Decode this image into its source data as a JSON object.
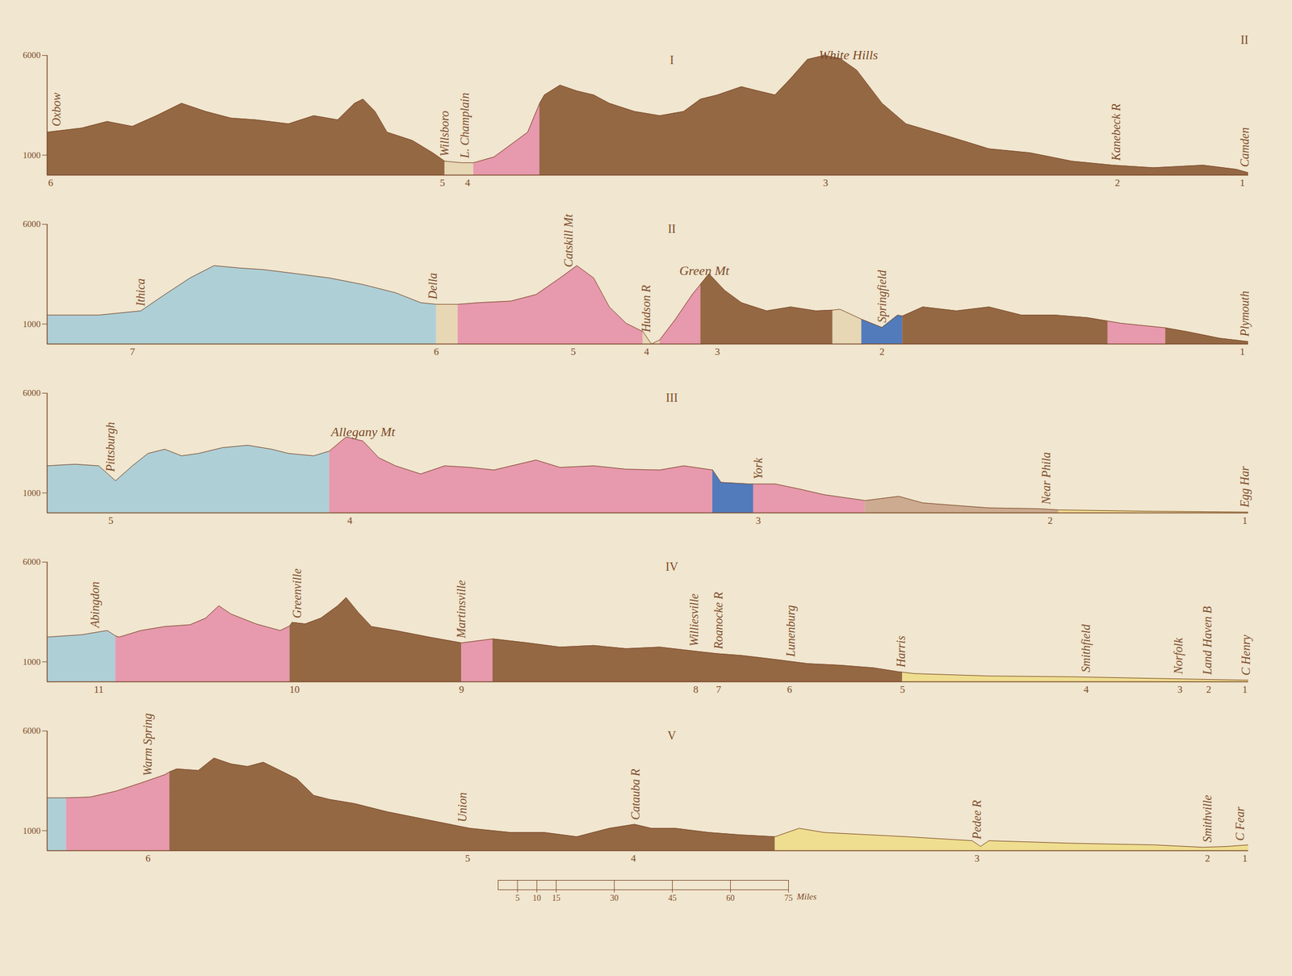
{
  "chart_data": [
    {
      "type": "area",
      "title": "I",
      "plate_number": "II",
      "xlim": [
        0,
        100
      ],
      "ylim": [
        0,
        6000
      ],
      "yticks": [
        1000,
        6000
      ],
      "tick_labels": "y",
      "series": [
        {
          "color": "#8b5a34",
          "x": [
            0,
            2.9,
            5.0,
            7.1,
            9.1,
            11.2,
            13.2,
            15.3,
            17.4,
            20.1,
            22.2,
            24.2,
            25.6,
            26.3,
            27.3,
            28.3,
            30.4,
            32.1,
            33.1
          ],
          "values": [
            2150,
            2360,
            2690,
            2440,
            2980,
            3600,
            3190,
            2860,
            2770,
            2570,
            2980,
            2770,
            3600,
            3810,
            3190,
            2150,
            1740,
            1120,
            700
          ]
        },
        {
          "color": "#e6d5b0",
          "x": [
            33.1,
            34.5,
            35.5
          ],
          "values": [
            700,
            620,
            620
          ]
        },
        {
          "color": "#e590a8",
          "x": [
            35.5,
            37.2,
            40.0,
            41.0
          ],
          "values": [
            620,
            910,
            2150,
            3600
          ]
        },
        {
          "color": "#8b5a34",
          "x": [
            41.0,
            41.4,
            42.7,
            44.1,
            45.5,
            46.8,
            48.9,
            51.0,
            53.0,
            54.4,
            55.8,
            57.8,
            59.2,
            60.6,
            61.9,
            63.3,
            64.7,
            66.0,
            67.4,
            69.5,
            71.5,
            75.0,
            78.4,
            81.8,
            85.3,
            88.7,
            92.1,
            96.2,
            99.0,
            100
          ],
          "values": [
            3600,
            4020,
            4510,
            4220,
            4020,
            3600,
            3190,
            2980,
            3190,
            3810,
            4020,
            4430,
            4220,
            4020,
            4840,
            5800,
            6000,
            5850,
            5260,
            3600,
            2570,
            1950,
            1320,
            1120,
            700,
            500,
            370,
            500,
            290,
            120
          ]
        }
      ],
      "places": [
        {
          "x": 0.8,
          "label": "Oxbow"
        },
        {
          "x": 33.1,
          "label": "Willsboro"
        },
        {
          "x": 34.8,
          "label": "L. Champlain"
        },
        {
          "x": 89.0,
          "label": "Kanebeck R"
        },
        {
          "x": 99.7,
          "label": "Camden"
        }
      ],
      "annotations": [
        {
          "x": 66.7,
          "label": "White Hills"
        }
      ],
      "stations": [
        {
          "x": 0.3,
          "label": "6"
        },
        {
          "x": 32.9,
          "label": "5"
        },
        {
          "x": 35.0,
          "label": "4"
        },
        {
          "x": 64.8,
          "label": "3"
        },
        {
          "x": 89.1,
          "label": "2"
        },
        {
          "x": 99.5,
          "label": "1"
        }
      ]
    },
    {
      "type": "area",
      "title": "II",
      "xlim": [
        0,
        100
      ],
      "ylim": [
        0,
        6000
      ],
      "yticks": [
        1000,
        6000
      ],
      "tick_labels": "y",
      "series": [
        {
          "color": "#a6ccd6",
          "x": [
            0,
            4.3,
            7.8,
            9.8,
            11.9,
            13.9,
            16.0,
            18.0,
            20.8,
            23.5,
            26.3,
            29.0,
            31.1,
            32.4
          ],
          "values": [
            1450,
            1450,
            1660,
            2480,
            3310,
            3930,
            3810,
            3730,
            3520,
            3310,
            2980,
            2570,
            2070,
            1990
          ]
        },
        {
          "color": "#e6d5b0",
          "x": [
            32.4,
            34.2
          ],
          "values": [
            1990,
            1990
          ]
        },
        {
          "color": "#e590a8",
          "x": [
            34.2,
            35.9,
            38.6,
            40.7,
            42.7,
            44.1,
            45.5,
            46.8,
            48.2,
            49.6
          ],
          "values": [
            1990,
            2070,
            2150,
            2480,
            3310,
            3930,
            3310,
            1860,
            1040,
            620
          ]
        },
        {
          "color": "#e6d5b0",
          "x": [
            49.6,
            50.3,
            51.0
          ],
          "values": [
            620,
            0,
            210
          ]
        },
        {
          "color": "#e590a8",
          "x": [
            51.0,
            52.3,
            53.7,
            54.4
          ],
          "values": [
            210,
            1240,
            2480,
            3000
          ]
        },
        {
          "color": "#8b5a34",
          "x": [
            54.4,
            55.1,
            56.4,
            57.8,
            59.9,
            61.9,
            64.0,
            65.4
          ],
          "values": [
            3000,
            3520,
            2690,
            2070,
            1660,
            1860,
            1660,
            1700
          ]
        },
        {
          "color": "#e6d5b0",
          "x": [
            65.4,
            66.0,
            67.8
          ],
          "values": [
            1700,
            1740,
            1240
          ]
        },
        {
          "color": "#3f6fb8",
          "x": [
            67.8,
            69.5,
            70.8,
            71.2
          ],
          "values": [
            1240,
            830,
            1450,
            1400
          ]
        },
        {
          "color": "#8b5a34",
          "x": [
            71.2,
            72.9,
            75.7,
            78.4,
            81.1,
            83.9,
            86.6,
            88.3
          ],
          "values": [
            1400,
            1860,
            1660,
            1860,
            1450,
            1450,
            1320,
            1150
          ]
        },
        {
          "color": "#e590a8",
          "x": [
            88.3,
            89.4,
            92.8,
            93.1
          ],
          "values": [
            1150,
            1040,
            830,
            810
          ]
        },
        {
          "color": "#8b5a34",
          "x": [
            93.1,
            94.9,
            97.6,
            100
          ],
          "values": [
            810,
            620,
            290,
            120
          ]
        }
      ],
      "places": [
        {
          "x": 7.8,
          "label": "Ithica"
        },
        {
          "x": 32.1,
          "label": "Della"
        },
        {
          "x": 43.4,
          "label": "Catskill Mt"
        },
        {
          "x": 49.9,
          "label": "Hudson R"
        },
        {
          "x": 69.5,
          "label": "Springfield"
        },
        {
          "x": 99.7,
          "label": "Plymouth"
        }
      ],
      "annotations": [
        {
          "x": 54.7,
          "label": "Green Mt"
        }
      ],
      "stations": [
        {
          "x": 7.1,
          "label": "7"
        },
        {
          "x": 32.4,
          "label": "6"
        },
        {
          "x": 43.8,
          "label": "5"
        },
        {
          "x": 49.9,
          "label": "4"
        },
        {
          "x": 55.8,
          "label": "3"
        },
        {
          "x": 69.5,
          "label": "2"
        },
        {
          "x": 99.5,
          "label": "1"
        }
      ]
    },
    {
      "type": "area",
      "title": "III",
      "xlim": [
        0,
        100
      ],
      "ylim": [
        0,
        6000
      ],
      "yticks": [
        1000,
        6000
      ],
      "tick_labels": "y",
      "series": [
        {
          "color": "#a6ccd6",
          "x": [
            0,
            2.3,
            4.3,
            5.7,
            7.1,
            8.4,
            9.8,
            11.2,
            12.6,
            14.6,
            16.7,
            18.7,
            20.1,
            22.2,
            23.5
          ],
          "values": [
            2360,
            2440,
            2360,
            1610,
            2360,
            2980,
            3190,
            2860,
            2980,
            3270,
            3390,
            3190,
            2980,
            2860,
            3100
          ]
        },
        {
          "color": "#e590a8",
          "x": [
            23.5,
            24.9,
            26.3,
            27.6,
            29.0,
            31.1,
            33.1,
            35.2,
            37.2,
            40.7,
            42.7,
            45.5,
            48.2,
            51.0,
            53.0,
            55.4
          ],
          "values": [
            3100,
            3810,
            3600,
            2770,
            2360,
            1950,
            2360,
            2280,
            2150,
            2650,
            2280,
            2360,
            2190,
            2150,
            2360,
            2150
          ]
        },
        {
          "color": "#3f6fb8",
          "x": [
            55.4,
            56.1,
            58.5,
            58.8
          ],
          "values": [
            2150,
            1530,
            1450,
            1450
          ]
        },
        {
          "color": "#e590a8",
          "x": [
            58.8,
            60.6,
            62.6,
            64.7,
            68.1
          ],
          "values": [
            1450,
            1450,
            1200,
            910,
            620
          ]
        },
        {
          "color": "#c8a488",
          "x": [
            68.1,
            70.9,
            72.9,
            75.7,
            78.4,
            82.5,
            84.2
          ],
          "values": [
            620,
            830,
            500,
            370,
            250,
            210,
            150
          ]
        },
        {
          "color": "#eedd88",
          "x": [
            84.2,
            92.1,
            100
          ],
          "values": [
            150,
            80,
            40
          ]
        }
      ],
      "places": [
        {
          "x": 5.3,
          "label": "Pittsburgh"
        },
        {
          "x": 59.2,
          "label": "York"
        },
        {
          "x": 83.2,
          "label": "Near Phila"
        },
        {
          "x": 99.7,
          "label": "Egg Har"
        }
      ],
      "annotations": [
        {
          "x": 26.3,
          "label": "Allegany Mt"
        }
      ],
      "stations": [
        {
          "x": 5.3,
          "label": "5"
        },
        {
          "x": 25.2,
          "label": "4"
        },
        {
          "x": 59.2,
          "label": "3"
        },
        {
          "x": 83.5,
          "label": "2"
        },
        {
          "x": 99.7,
          "label": "1"
        }
      ]
    },
    {
      "type": "area",
      "title": "IV",
      "xlim": [
        0,
        100
      ],
      "ylim": [
        0,
        6000
      ],
      "yticks": [
        1000,
        6000
      ],
      "tick_labels": "y",
      "series": [
        {
          "color": "#a6ccd6",
          "x": [
            0,
            2.9,
            5.0,
            5.7
          ],
          "values": [
            2240,
            2360,
            2570,
            2300
          ]
        },
        {
          "color": "#e590a8",
          "x": [
            5.7,
            6.0,
            7.8,
            9.8,
            11.9,
            13.2,
            14.3,
            15.3,
            17.4,
            19.4,
            20.2
          ],
          "values": [
            2300,
            2240,
            2570,
            2770,
            2860,
            3190,
            3810,
            3400,
            2900,
            2570,
            2800
          ]
        },
        {
          "color": "#8b5a34",
          "x": [
            20.2,
            20.4,
            21.5,
            22.8,
            24.2,
            24.9,
            25.9,
            27.0,
            29.0,
            31.8,
            34.5
          ],
          "values": [
            2800,
            2980,
            2900,
            3190,
            3810,
            4220,
            3480,
            2770,
            2570,
            2240,
            1950
          ]
        },
        {
          "color": "#e590a8",
          "x": [
            34.5,
            37.1
          ],
          "values": [
            1950,
            2150
          ]
        },
        {
          "color": "#8b5a34",
          "x": [
            37.1,
            40.0,
            42.7,
            45.5,
            48.2,
            51.0,
            54.0,
            55.8,
            57.8,
            60.6,
            63.3,
            66.0,
            68.8,
            70.9,
            71.2
          ],
          "values": [
            2150,
            1950,
            1740,
            1820,
            1660,
            1740,
            1530,
            1410,
            1320,
            1120,
            910,
            830,
            700,
            500,
            480
          ]
        },
        {
          "color": "#eedd88",
          "x": [
            71.2,
            72.2,
            78.4,
            85.3,
            92.1,
            100
          ],
          "values": [
            480,
            410,
            290,
            250,
            170,
            80
          ]
        }
      ],
      "places": [
        {
          "x": 4.0,
          "label": "Abingdon"
        },
        {
          "x": 20.8,
          "label": "Greenville"
        },
        {
          "x": 34.5,
          "label": "Martinsville"
        },
        {
          "x": 53.9,
          "label": "Williesville"
        },
        {
          "x": 55.9,
          "label": "Roanocke R"
        },
        {
          "x": 61.9,
          "label": "Lunenburg"
        },
        {
          "x": 71.1,
          "label": "Harris"
        },
        {
          "x": 86.5,
          "label": "Smithfield"
        },
        {
          "x": 94.2,
          "label": "Norfolk"
        },
        {
          "x": 96.6,
          "label": "Land Haven B"
        },
        {
          "x": 99.8,
          "label": "C Henry"
        }
      ],
      "annotations": [],
      "stations": [
        {
          "x": 4.3,
          "label": "11"
        },
        {
          "x": 20.6,
          "label": "10"
        },
        {
          "x": 34.5,
          "label": "9"
        },
        {
          "x": 54.0,
          "label": "8"
        },
        {
          "x": 55.9,
          "label": "7"
        },
        {
          "x": 61.8,
          "label": "6"
        },
        {
          "x": 71.2,
          "label": "5"
        },
        {
          "x": 86.5,
          "label": "4"
        },
        {
          "x": 94.3,
          "label": "3"
        },
        {
          "x": 96.7,
          "label": "2"
        },
        {
          "x": 99.7,
          "label": "1"
        }
      ]
    },
    {
      "type": "area",
      "title": "V",
      "xlim": [
        0,
        100
      ],
      "ylim": [
        0,
        6000
      ],
      "yticks": [
        1000,
        6000
      ],
      "tick_labels": "y",
      "series": [
        {
          "color": "#a6ccd6",
          "x": [
            0,
            1.6
          ],
          "values": [
            2650,
            2650
          ]
        },
        {
          "color": "#e590a8",
          "x": [
            1.6,
            3.6,
            5.7,
            7.8,
            9.8,
            10.2
          ],
          "values": [
            2650,
            2690,
            2980,
            3390,
            3810,
            3950
          ]
        },
        {
          "color": "#8b5a34",
          "x": [
            10.2,
            10.8,
            12.6,
            13.9,
            15.3,
            16.7,
            18.0,
            19.4,
            20.8,
            22.2,
            23.5,
            25.6,
            28.3,
            31.8,
            35.2,
            38.6,
            41.4,
            44.1,
            46.8,
            48.9,
            50.3,
            52.3,
            55.1,
            57.8,
            60.6
          ],
          "values": [
            3950,
            4100,
            4020,
            4640,
            4350,
            4220,
            4430,
            4020,
            3600,
            2770,
            2570,
            2360,
            1950,
            1530,
            1120,
            910,
            910,
            700,
            1120,
            1320,
            1120,
            1120,
            910,
            790,
            700
          ]
        },
        {
          "color": "#eedd88",
          "x": [
            60.6,
            62.6,
            64.7,
            71.5,
            77.0,
            77.7,
            78.4,
            85.3,
            92.1,
            96.2,
            98.2,
            100
          ],
          "values": [
            700,
            1120,
            910,
            700,
            500,
            210,
            500,
            370,
            290,
            170,
            210,
            290
          ]
        }
      ],
      "places": [
        {
          "x": 8.4,
          "label": "Warm Spring"
        },
        {
          "x": 34.6,
          "label": "Union"
        },
        {
          "x": 49.0,
          "label": "Catauba R"
        },
        {
          "x": 77.4,
          "label": "Pedee R"
        },
        {
          "x": 96.6,
          "label": "Smithville"
        },
        {
          "x": 99.3,
          "label": "C Fear"
        }
      ],
      "annotations": [],
      "stations": [
        {
          "x": 8.4,
          "label": "6"
        },
        {
          "x": 35.0,
          "label": "5"
        },
        {
          "x": 48.8,
          "label": "4"
        },
        {
          "x": 77.4,
          "label": "3"
        },
        {
          "x": 96.6,
          "label": "2"
        },
        {
          "x": 99.7,
          "label": "1"
        }
      ]
    },
    {
      "type": "scale",
      "xlim": [
        0,
        75
      ],
      "xticks": [
        5,
        10,
        15,
        30,
        45,
        60,
        75
      ],
      "xlabel": "Miles"
    }
  ]
}
